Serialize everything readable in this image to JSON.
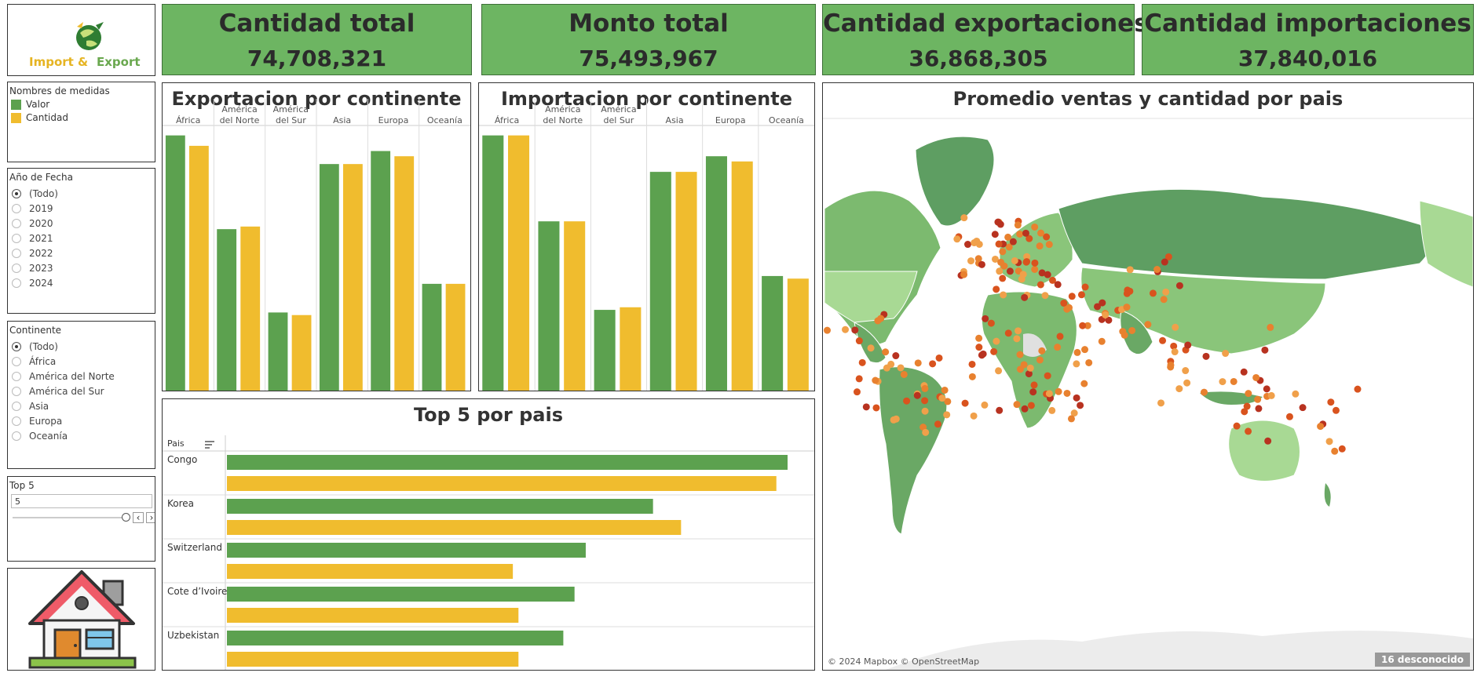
{
  "logo": {
    "text1": "Import & ",
    "text2": "Export"
  },
  "kpis": [
    {
      "title": "Cantidad total",
      "value": "74,708,321"
    },
    {
      "title": "Monto total",
      "value": "75,493,967"
    },
    {
      "title": "Cantidad exportaciones",
      "value": "36,868,305"
    },
    {
      "title": "Cantidad importaciones",
      "value": "37,840,016"
    }
  ],
  "legend": {
    "title": "Nombres de medidas",
    "items": [
      {
        "label": "Valor",
        "color": "#5ca14f"
      },
      {
        "label": "Cantidad",
        "color": "#f0bc2e"
      }
    ]
  },
  "year_filter": {
    "title": "Año de Fecha",
    "options": [
      "(Todo)",
      "2019",
      "2020",
      "2021",
      "2022",
      "2023",
      "2024"
    ],
    "selected": "(Todo)"
  },
  "continent_filter": {
    "title": "Continente",
    "options": [
      "(Todo)",
      "África",
      "América del Norte",
      "América del Sur",
      "Asia",
      "Europa",
      "Oceanía"
    ],
    "selected": "(Todo)"
  },
  "top_param": {
    "title": "Top 5",
    "value": "5",
    "prev": "‹",
    "next": "›"
  },
  "export_chart": {
    "title": "Exportacion por continente"
  },
  "import_chart": {
    "title": "Importacion  por continente"
  },
  "top5_chart": {
    "title": "Top 5 por pais",
    "header": "Pais"
  },
  "map": {
    "title": "Promedio ventas y cantidad por pais",
    "attribution": "© 2024 Mapbox © OpenStreetMap",
    "unknown": "16 desconocido"
  },
  "chart_data": [
    {
      "type": "bar",
      "title": "Exportacion por continente",
      "categories": [
        "África",
        "América del Norte",
        "América del Sur",
        "Asia",
        "Europa",
        "Oceanía"
      ],
      "series": [
        {
          "name": "Valor",
          "values": [
            98,
            62,
            30,
            87,
            92,
            41
          ]
        },
        {
          "name": "Cantidad",
          "values": [
            94,
            63,
            29,
            87,
            90,
            41
          ]
        }
      ],
      "ylim": [
        0,
        100
      ]
    },
    {
      "type": "bar",
      "title": "Importacion  por continente",
      "categories": [
        "África",
        "América del Norte",
        "América del Sur",
        "Asia",
        "Europa",
        "Oceanía"
      ],
      "series": [
        {
          "name": "Valor",
          "values": [
            98,
            65,
            31,
            84,
            90,
            44
          ]
        },
        {
          "name": "Cantidad",
          "values": [
            98,
            65,
            32,
            84,
            88,
            43
          ]
        }
      ],
      "ylim": [
        0,
        100
      ]
    },
    {
      "type": "bar",
      "title": "Top 5 por pais",
      "orientation": "horizontal",
      "categories": [
        "Congo",
        "Korea",
        "Switzerland",
        "Cote d’Ivoire",
        "Uzbekistan"
      ],
      "series": [
        {
          "name": "Valor",
          "values": [
            100,
            76,
            64,
            62,
            60
          ]
        },
        {
          "name": "Cantidad",
          "values": [
            98,
            81,
            51,
            52,
            52
          ]
        }
      ],
      "xlim": [
        0,
        100
      ]
    }
  ]
}
